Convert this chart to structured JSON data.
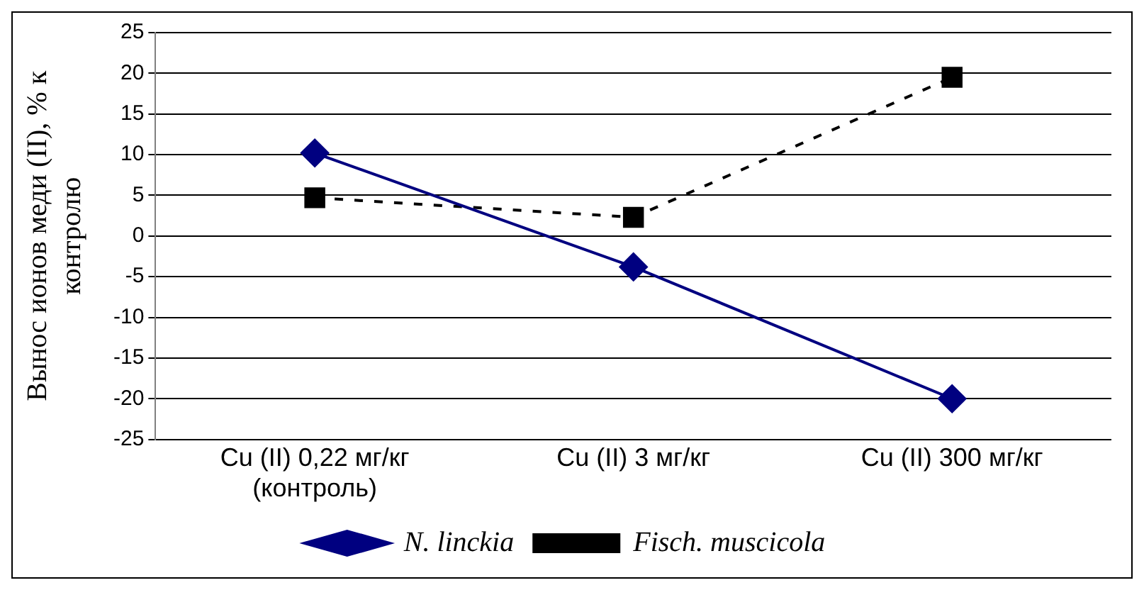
{
  "chart_data": {
    "type": "line",
    "ylabel": "Вынос ионов меди (II), % к контролю",
    "categories": [
      "Cu (II) 0,22 мг/кг (контроль)",
      "Cu (II) 3 мг/кг",
      "Cu (II) 300 мг/кг"
    ],
    "series": [
      {
        "name": "N. linckia",
        "color": "#000080",
        "values": [
          10.2,
          -3.8,
          -20.0
        ],
        "marker": "diamond",
        "line_style": "solid"
      },
      {
        "name": "Fisch. muscicola",
        "color": "#000000",
        "values": [
          4.7,
          2.3,
          19.5
        ],
        "marker": "square",
        "line_style": "dashed"
      }
    ],
    "ylim": [
      -25,
      25
    ],
    "yticks": [
      -25,
      -20,
      -15,
      -10,
      -5,
      0,
      5,
      10,
      15,
      20,
      25
    ],
    "grid": "y",
    "legend": "bottom"
  }
}
